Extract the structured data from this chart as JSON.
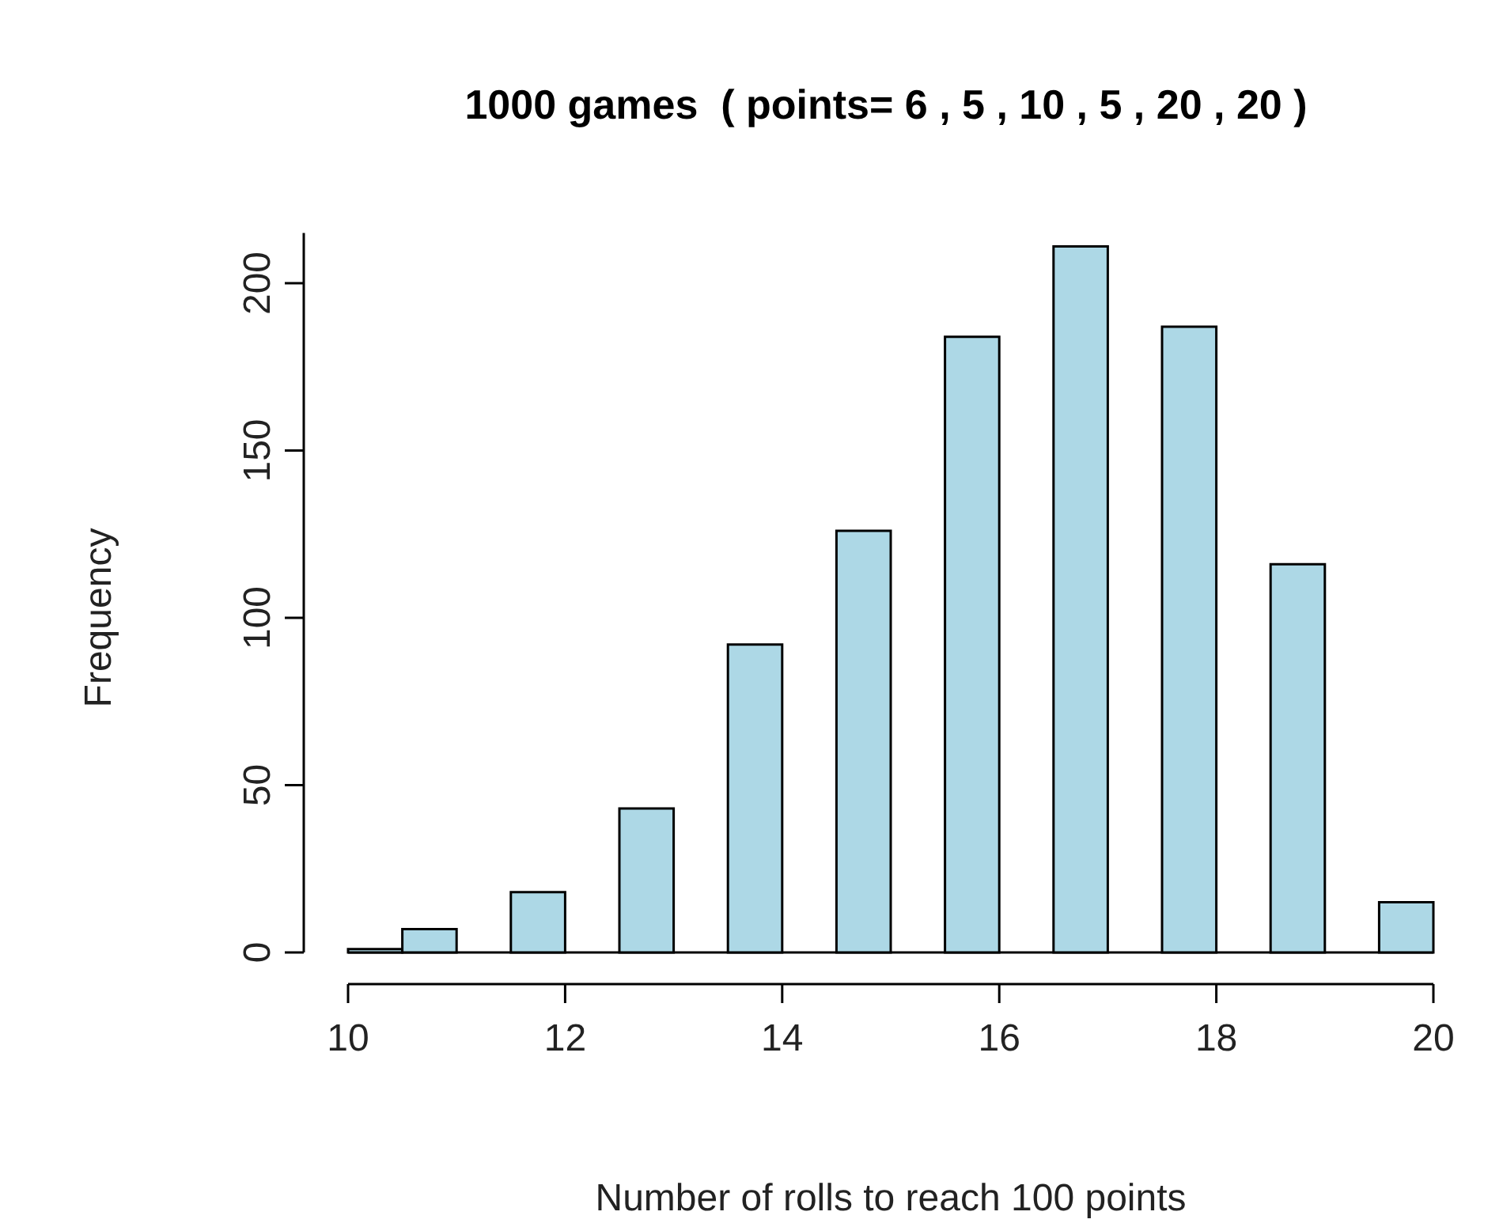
{
  "chart_data": {
    "type": "histogram",
    "title": "1000 games  ( points= 6 , 5 , 10 , 5 , 20 , 20 )",
    "xlabel": "Number of rolls to reach 100 points",
    "ylabel": "Frequency",
    "bins": [
      10,
      10.5,
      11,
      11.5,
      12,
      12.5,
      13,
      13.5,
      14,
      14.5,
      15,
      15.5,
      16,
      16.5,
      17,
      17.5,
      18,
      18.5,
      19,
      19.5,
      20
    ],
    "values": [
      1,
      7,
      0,
      18,
      0,
      43,
      0,
      92,
      0,
      126,
      0,
      184,
      0,
      211,
      0,
      187,
      0,
      116,
      0,
      15
    ],
    "color": "#add8e6",
    "xlim": [
      10,
      20
    ],
    "xticks": [
      10,
      12,
      14,
      16,
      18,
      20
    ],
    "ylim": [
      0,
      215
    ],
    "yticks": [
      0,
      50,
      100,
      150,
      200
    ],
    "grid": false
  }
}
